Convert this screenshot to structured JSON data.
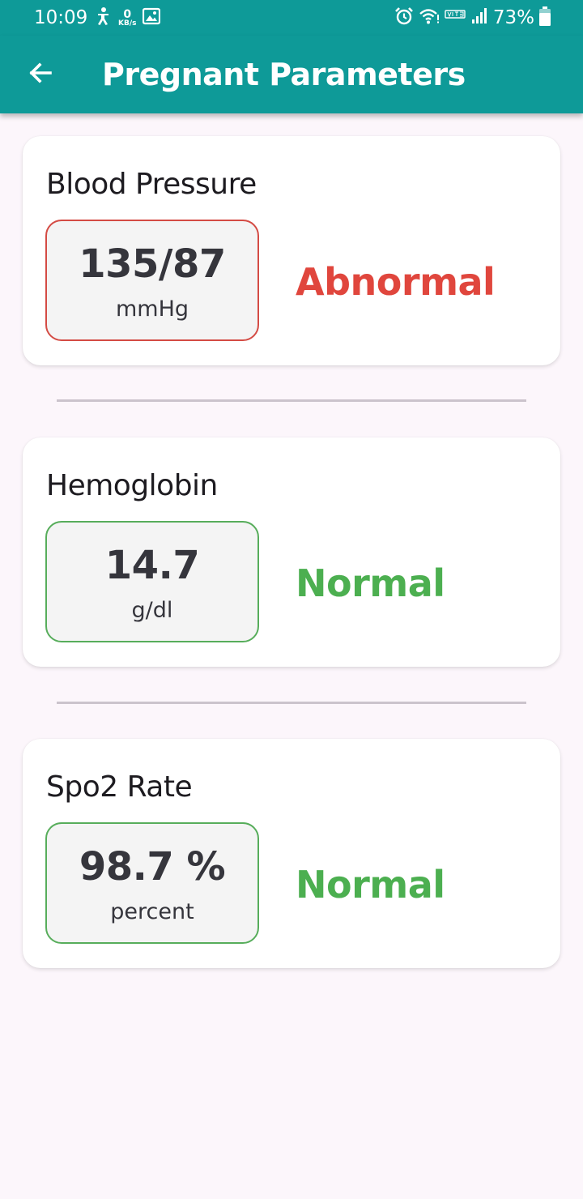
{
  "status_bar": {
    "time": "10:09",
    "data_speed_value": "0",
    "data_speed_unit": "KB/s",
    "battery": "73%"
  },
  "app_bar": {
    "title": "Pregnant Parameters"
  },
  "colors": {
    "primary": "#0e9a98",
    "abnormal": "#e0463d",
    "normal": "#4caf50",
    "abnormal_border": "#d44b44",
    "normal_border": "#57ad5b"
  },
  "parameters": [
    {
      "title": "Blood Pressure",
      "value": "135/87",
      "unit": "mmHg",
      "status": "Abnormal"
    },
    {
      "title": "Hemoglobin",
      "value": "14.7",
      "unit": "g/dl",
      "status": "Normal"
    },
    {
      "title": "Spo2 Rate",
      "value": "98.7 %",
      "unit": "percent",
      "status": "Normal"
    }
  ]
}
